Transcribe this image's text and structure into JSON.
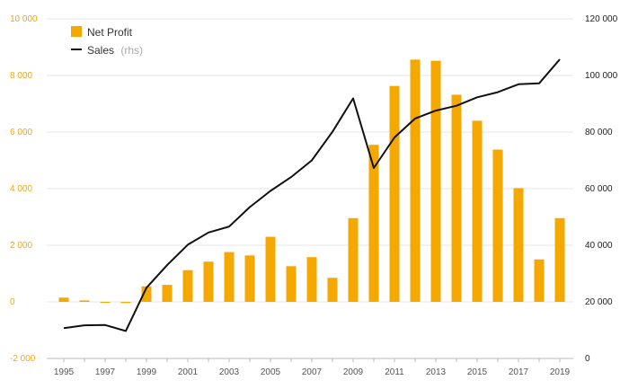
{
  "chart_data": {
    "type": "bar+line",
    "colors": {
      "bar": "#f5a800",
      "line": "#111111",
      "grid": "#e6e6e6"
    },
    "x": [
      "1995",
      "1996",
      "1997",
      "1998",
      "1999",
      "2000",
      "2001",
      "2002",
      "2003",
      "2004",
      "2005",
      "2006",
      "2007",
      "2008",
      "2009",
      "2010",
      "2011",
      "2012",
      "2013",
      "2014",
      "2015",
      "2016",
      "2017",
      "2018",
      "2019"
    ],
    "x_tick_labels": [
      "1995",
      "1997",
      "1999",
      "2001",
      "2003",
      "2005",
      "2007",
      "2009",
      "2011",
      "2013",
      "2015",
      "2017",
      "2019"
    ],
    "series": [
      {
        "name": "Net Profit",
        "type": "bar",
        "axis": "left",
        "values": [
          150,
          50,
          -30,
          -40,
          550,
          600,
          1120,
          1420,
          1760,
          1640,
          2300,
          1260,
          1580,
          850,
          2960,
          5550,
          7630,
          8560,
          8520,
          7320,
          6400,
          5380,
          4020,
          1500,
          2960
        ]
      },
      {
        "name": "Sales",
        "name_note": "(rhs)",
        "type": "line",
        "axis": "right",
        "values": [
          10700,
          11700,
          11800,
          9700,
          25000,
          33000,
          40200,
          44500,
          46600,
          53500,
          59200,
          64100,
          70000,
          80100,
          91900,
          67300,
          78100,
          84800,
          87600,
          89300,
          92300,
          94100,
          96900,
          97200,
          105700
        ]
      }
    ],
    "left_axis": {
      "ylim": [
        -2000,
        10000
      ],
      "ticks": [
        -2000,
        0,
        2000,
        4000,
        6000,
        8000,
        10000
      ],
      "tick_labels": [
        "-2 000",
        "0",
        "2 000",
        "4 000",
        "6 000",
        "8 000",
        "10 000"
      ]
    },
    "right_axis": {
      "ylim": [
        0,
        120000
      ],
      "ticks": [
        0,
        20000,
        40000,
        60000,
        80000,
        100000,
        120000
      ],
      "tick_labels": [
        "0",
        "20 000",
        "40 000",
        "60 000",
        "80 000",
        "100 000",
        "120 000"
      ]
    },
    "grid": true,
    "legend": "top-left"
  }
}
